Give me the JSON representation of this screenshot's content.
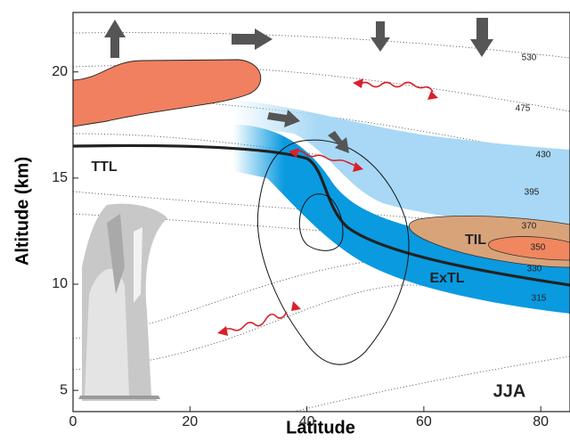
{
  "chart_data": {
    "type": "schematic",
    "xlabel": "Latitude",
    "ylabel": "Altitude (km)",
    "xlim": [
      0,
      85
    ],
    "ylim": [
      4,
      22.8
    ],
    "xticks": [
      0,
      20,
      40,
      60,
      80
    ],
    "yticks": [
      5,
      10,
      15,
      20
    ],
    "regions": [
      "TTL",
      "ExTL",
      "TIL"
    ],
    "season": "JJA",
    "isentropes": [
      "530",
      "475",
      "430",
      "395",
      "370",
      "350",
      "330",
      "315"
    ]
  }
}
